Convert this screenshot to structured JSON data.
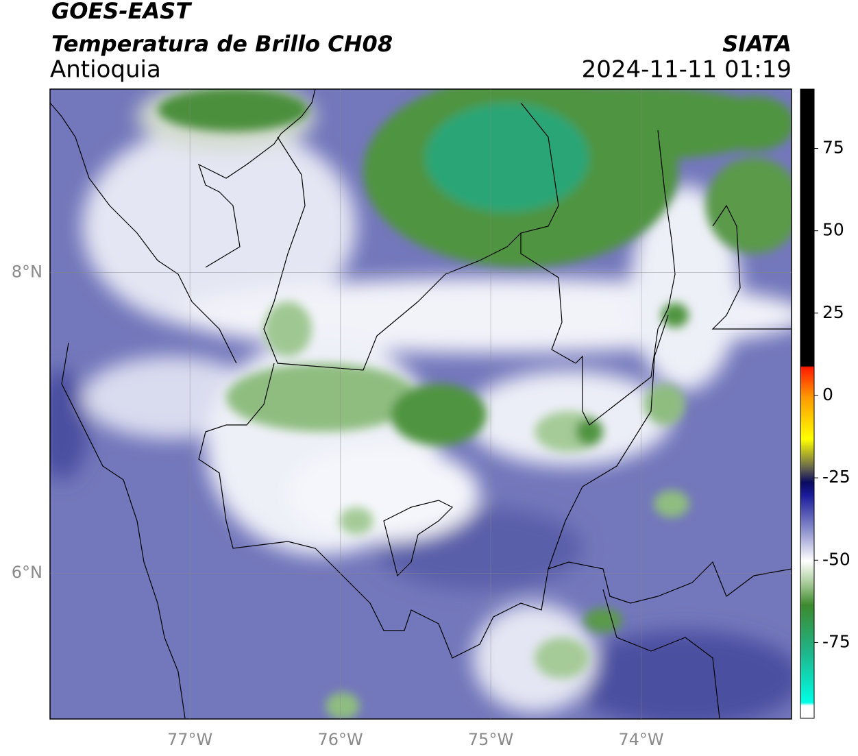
{
  "header": {
    "title": "GOES-EAST",
    "subtitle": "Temperatura de Brillo CH08",
    "region": "Antioquia",
    "source": "SIATA",
    "datetime": "2024-11-11 01:19"
  },
  "map": {
    "xlim": [
      -77.93,
      -73.0
    ],
    "ylim": [
      5.03,
      9.22
    ],
    "grid": true,
    "lon_ticks": [
      {
        "value": -77,
        "label": "77°W"
      },
      {
        "value": -76,
        "label": "76°W"
      },
      {
        "value": -75,
        "label": "75°W"
      },
      {
        "value": -74,
        "label": "74°W"
      }
    ],
    "lat_ticks": [
      {
        "value": 8,
        "label": "8°N"
      },
      {
        "value": 6,
        "label": "6°N"
      }
    ]
  },
  "colorbar": {
    "lim": [
      -98,
      93
    ],
    "ticks": [
      75,
      50,
      25,
      0,
      -25,
      -50,
      -75
    ]
  }
}
